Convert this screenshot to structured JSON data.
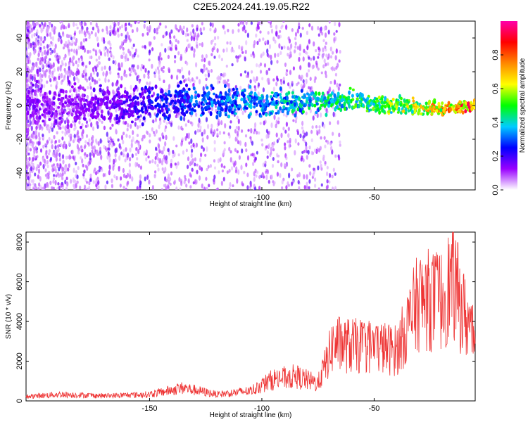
{
  "title": "C2E5.2024.241.19.05.R22",
  "chart_data": [
    {
      "type": "heatmap",
      "xlabel": "Height of straight line (km)",
      "ylabel": "Frequency (Hz)",
      "xlim": [
        -205,
        -5
      ],
      "ylim": [
        -50,
        50
      ],
      "x_ticks": [
        -150,
        -100,
        -50
      ],
      "x_tick_labels": [
        "-150",
        "-100",
        "-50"
      ],
      "y_ticks": [
        -40,
        -20,
        0,
        20,
        40
      ],
      "y_tick_labels": [
        "-40",
        "-20",
        "0",
        "20",
        "40"
      ],
      "colorbar": {
        "label": "Normalized spectral amplitude",
        "range": [
          0,
          1
        ],
        "ticks": [
          0.0,
          0.2,
          0.4,
          0.6,
          0.8
        ],
        "tick_labels": [
          "0.0",
          "0.2",
          "0.4",
          "0.6",
          "0.8"
        ],
        "colors": [
          "#ffffff",
          "#9900ff",
          "#0000ff",
          "#00ccff",
          "#00ff00",
          "#ffff00",
          "#ff8800",
          "#ff0000",
          "#ff00aa"
        ]
      },
      "ridge": {
        "x": [
          -200,
          -180,
          -160,
          -140,
          -120,
          -100,
          -80,
          -60,
          -40,
          -20,
          -5
        ],
        "frequency": [
          0,
          0,
          0,
          2,
          3,
          1,
          2,
          3,
          0,
          -2,
          0
        ],
        "amplitude": [
          0.15,
          0.15,
          0.2,
          0.3,
          0.35,
          0.4,
          0.45,
          0.5,
          0.6,
          0.75,
          0.9
        ]
      },
      "grid": false
    },
    {
      "type": "line",
      "xlabel": "Height of straight line (km)",
      "ylabel": "SNR (10 * v/v)",
      "xlim": [
        -205,
        -5
      ],
      "ylim": [
        0,
        8500
      ],
      "x_ticks": [
        -150,
        -100,
        -50
      ],
      "x_tick_labels": [
        "-150",
        "-100",
        "-50"
      ],
      "y_ticks": [
        0,
        2000,
        4000,
        6000,
        8000
      ],
      "y_tick_labels": [
        "0",
        "2000",
        "4000",
        "6000",
        "8000"
      ],
      "color": "#ee3333",
      "envelope": {
        "x": [
          -205,
          -190,
          -170,
          -150,
          -135,
          -120,
          -105,
          -95,
          -85,
          -75,
          -68,
          -60,
          -50,
          -40,
          -30,
          -20,
          -15,
          -10,
          -5
        ],
        "y": [
          300,
          450,
          350,
          450,
          900,
          450,
          700,
          1500,
          1700,
          1200,
          4000,
          3800,
          3800,
          3500,
          7000,
          7000,
          8400,
          6000,
          4500
        ]
      },
      "grid": false
    }
  ]
}
